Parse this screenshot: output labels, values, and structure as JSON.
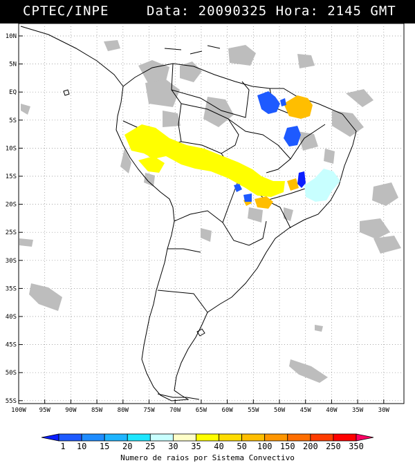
{
  "header": {
    "left": "CPTEC/INPE",
    "right": "Data: 20090325 Hora: 2145 GMT"
  },
  "map": {
    "lat_labels": [
      "10N",
      "5N",
      "EQ",
      "5S",
      "10S",
      "15S",
      "20S",
      "25S",
      "30S",
      "35S",
      "40S",
      "45S",
      "50S",
      "55S"
    ],
    "lon_labels": [
      "100W",
      "95W",
      "90W",
      "85W",
      "80W",
      "75W",
      "70W",
      "65W",
      "60W",
      "55W",
      "50W",
      "45W",
      "40W",
      "35W",
      "30W"
    ]
  },
  "legend": {
    "ticks": [
      "1",
      "10",
      "15",
      "20",
      "25",
      "30",
      "35",
      "40",
      "50",
      "100",
      "150",
      "200",
      "250",
      "350"
    ],
    "colors": [
      "#0a1eff",
      "#1e5aff",
      "#1e8cff",
      "#1eb4ff",
      "#1ee6ff",
      "#c8ffff",
      "#ffffc8",
      "#ffff00",
      "#ffdc00",
      "#ffbe00",
      "#ff9600",
      "#ff6e00",
      "#ff3c00",
      "#ff0000",
      "#ff0064"
    ],
    "label": "Numero de raios por Sistema Convectivo"
  }
}
